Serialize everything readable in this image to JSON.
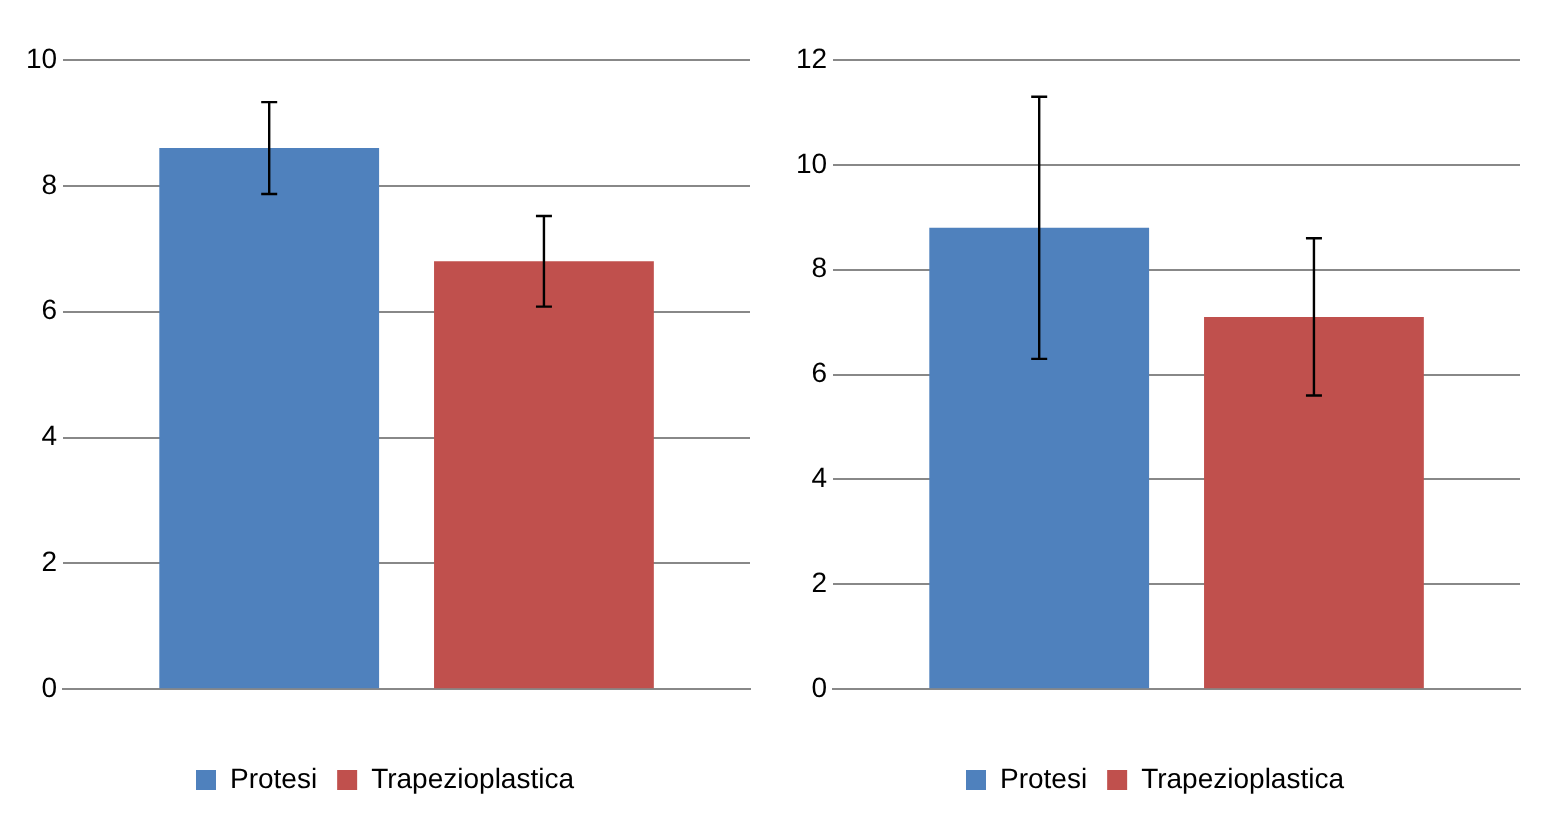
{
  "chart_data": [
    {
      "type": "bar",
      "categories": [
        null
      ],
      "series": [
        {
          "name": "Protesi",
          "color": "#4f81bd",
          "values": [
            8.6
          ],
          "errors": [
            0.73
          ]
        },
        {
          "name": "Trapezioplastica",
          "color": "#c0504d",
          "values": [
            6.8
          ],
          "errors": [
            0.72
          ]
        }
      ],
      "ylim": [
        0,
        10
      ],
      "yticks": [
        0,
        2,
        4,
        6,
        8,
        10
      ],
      "grid": "y",
      "legend": "bottom"
    },
    {
      "type": "bar",
      "categories": [
        null
      ],
      "series": [
        {
          "name": "Protesi",
          "color": "#4f81bd",
          "values": [
            8.8
          ],
          "errors": [
            2.5
          ]
        },
        {
          "name": "Trapezioplastica",
          "color": "#c0504d",
          "values": [
            7.1
          ],
          "errors": [
            1.5
          ]
        }
      ],
      "ylim": [
        0,
        12
      ],
      "yticks": [
        0,
        2,
        4,
        6,
        8,
        10,
        12
      ],
      "grid": "y",
      "legend": "bottom"
    }
  ]
}
